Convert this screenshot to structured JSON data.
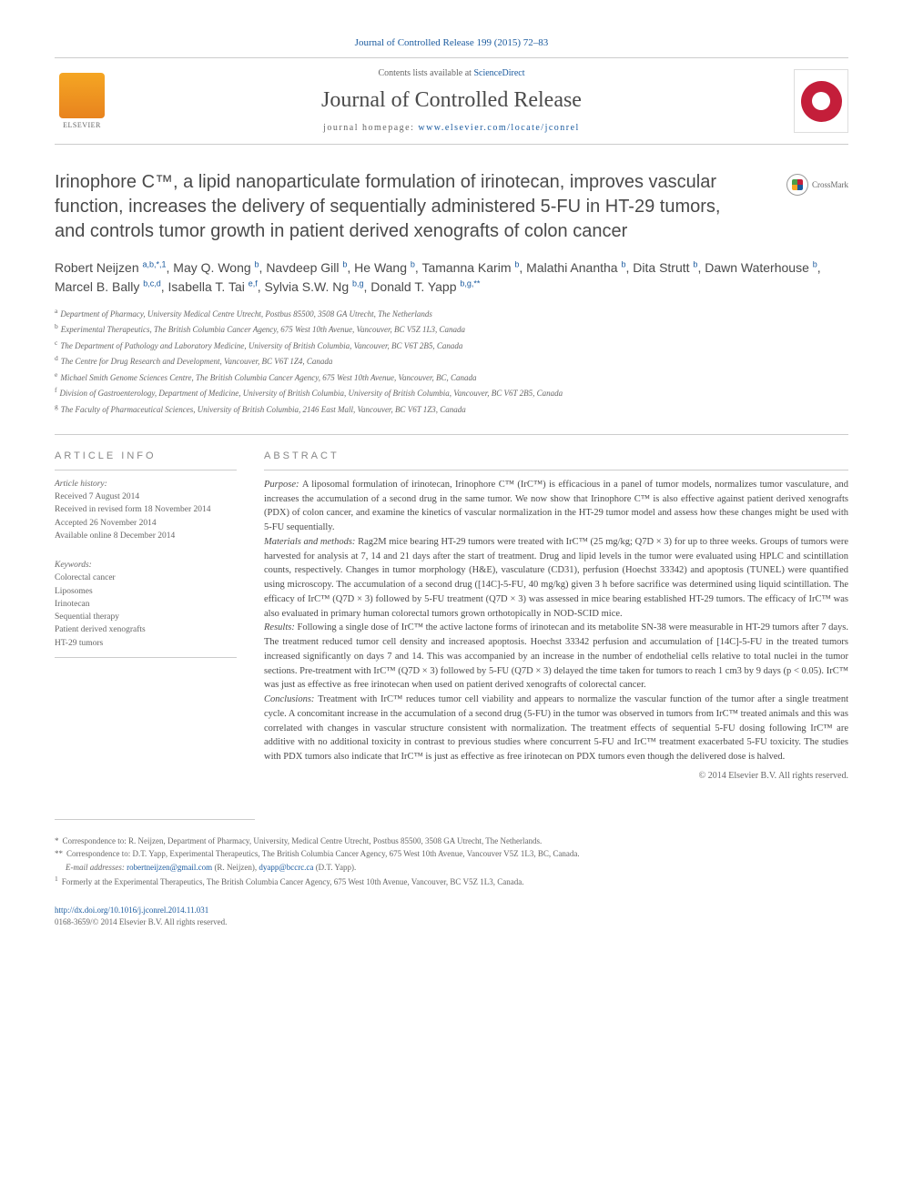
{
  "header": {
    "citation": "Journal of Controlled Release 199 (2015) 72–83",
    "contents_prefix": "Contents lists available at ",
    "contents_link": "ScienceDirect",
    "journal_name": "Journal of Controlled Release",
    "homepage_prefix": "journal homepage: ",
    "homepage_url": "www.elsevier.com/locate/jconrel",
    "publisher": "ELSEVIER"
  },
  "crossmark": "CrossMark",
  "title": "Irinophore C™, a lipid nanoparticulate formulation of irinotecan, improves vascular function, increases the delivery of sequentially administered 5-FU in HT-29 tumors, and controls tumor growth in patient derived xenografts of colon cancer",
  "authors_html": "Robert Neijzen <sup class='aff'>a,b,*,1</sup>, May Q. Wong <sup class='aff'>b</sup>, Navdeep Gill <sup class='aff'>b</sup>, He Wang <sup class='aff'>b</sup>, Tamanna Karim <sup class='aff'>b</sup>, Malathi Anantha <sup class='aff'>b</sup>, Dita Strutt <sup class='aff'>b</sup>, Dawn Waterhouse <sup class='aff'>b</sup>, Marcel B. Bally <sup class='aff'>b,c,d</sup>, Isabella T. Tai <sup class='aff'>e,f</sup>, Sylvia S.W. Ng <sup class='aff'>b,g</sup>, Donald T. Yapp <sup class='aff'>b,g,**</sup>",
  "affiliations": [
    {
      "key": "a",
      "text": "Department of Pharmacy, University Medical Centre Utrecht, Postbus 85500, 3508 GA Utrecht, The Netherlands"
    },
    {
      "key": "b",
      "text": "Experimental Therapeutics, The British Columbia Cancer Agency, 675 West 10th Avenue, Vancouver, BC V5Z 1L3, Canada"
    },
    {
      "key": "c",
      "text": "The Department of Pathology and Laboratory Medicine, University of British Columbia, Vancouver, BC V6T 2B5, Canada"
    },
    {
      "key": "d",
      "text": "The Centre for Drug Research and Development, Vancouver, BC V6T 1Z4, Canada"
    },
    {
      "key": "e",
      "text": "Michael Smith Genome Sciences Centre, The British Columbia Cancer Agency, 675 West 10th Avenue, Vancouver, BC, Canada"
    },
    {
      "key": "f",
      "text": "Division of Gastroenterology, Department of Medicine, University of British Columbia, University of British Columbia, Vancouver, BC V6T 2B5, Canada"
    },
    {
      "key": "g",
      "text": "The Faculty of Pharmaceutical Sciences, University of British Columbia, 2146 East Mall, Vancouver, BC V6T 1Z3, Canada"
    }
  ],
  "article_info": {
    "header": "ARTICLE INFO",
    "history_label": "Article history:",
    "received": "Received 7 August 2014",
    "revised": "Received in revised form 18 November 2014",
    "accepted": "Accepted 26 November 2014",
    "online": "Available online 8 December 2014",
    "keywords_label": "Keywords:",
    "keywords": [
      "Colorectal cancer",
      "Liposomes",
      "Irinotecan",
      "Sequential therapy",
      "Patient derived xenografts",
      "HT-29 tumors"
    ]
  },
  "abstract": {
    "header": "ABSTRACT",
    "purpose_label": "Purpose: ",
    "purpose": "A liposomal formulation of irinotecan, Irinophore C™ (IrC™) is efficacious in a panel of tumor models, normalizes tumor vasculature, and increases the accumulation of a second drug in the same tumor. We now show that Irinophore C™ is also effective against patient derived xenografts (PDX) of colon cancer, and examine the kinetics of vascular normalization in the HT-29 tumor model and assess how these changes might be used with 5-FU sequentially.",
    "methods_label": "Materials and methods: ",
    "methods": "Rag2M mice bearing HT-29 tumors were treated with IrC™ (25 mg/kg; Q7D × 3) for up to three weeks. Groups of tumors were harvested for analysis at 7, 14 and 21 days after the start of treatment. Drug and lipid levels in the tumor were evaluated using HPLC and scintillation counts, respectively. Changes in tumor morphology (H&E), vasculature (CD31), perfusion (Hoechst 33342) and apoptosis (TUNEL) were quantified using microscopy. The accumulation of a second drug ([14C]-5-FU, 40 mg/kg) given 3 h before sacrifice was determined using liquid scintillation. The efficacy of IrC™ (Q7D × 3) followed by 5-FU treatment (Q7D × 3) was assessed in mice bearing established HT-29 tumors. The efficacy of IrC™ was also evaluated in primary human colorectal tumors grown orthotopically in NOD-SCID mice.",
    "results_label": "Results: ",
    "results": "Following a single dose of IrC™ the active lactone forms of irinotecan and its metabolite SN-38 were measurable in HT-29 tumors after 7 days. The treatment reduced tumor cell density and increased apoptosis. Hoechst 33342 perfusion and accumulation of [14C]-5-FU in the treated tumors increased significantly on days 7 and 14. This was accompanied by an increase in the number of endothelial cells relative to total nuclei in the tumor sections. Pre-treatment with IrC™ (Q7D × 3) followed by 5-FU (Q7D × 3) delayed the time taken for tumors to reach 1 cm3 by 9 days (p < 0.05). IrC™ was just as effective as free irinotecan when used on patient derived xenografts of colorectal cancer.",
    "conclusions_label": "Conclusions: ",
    "conclusions": "Treatment with IrC™ reduces tumor cell viability and appears to normalize the vascular function of the tumor after a single treatment cycle. A concomitant increase in the accumulation of a second drug (5-FU) in the tumor was observed in tumors from IrC™ treated animals and this was correlated with changes in vascular structure consistent with normalization. The treatment effects of sequential 5-FU dosing following IrC™ are additive with no additional toxicity in contrast to previous studies where concurrent 5-FU and IrC™ treatment exacerbated 5-FU toxicity. The studies with PDX tumors also indicate that IrC™ is just as effective as free irinotecan on PDX tumors even though the delivered dose is halved.",
    "copyright": "© 2014 Elsevier B.V. All rights reserved."
  },
  "footer": {
    "corr1_marker": "*",
    "corr1": "Correspondence to: R. Neijzen, Department of Pharmacy, University, Medical Centre Utrecht, Postbus 85500, 3508 GA Utrecht, The Netherlands.",
    "corr2_marker": "**",
    "corr2": "Correspondence to: D.T. Yapp, Experimental Therapeutics, The British Columbia Cancer Agency, 675 West 10th Avenue, Vancouver V5Z 1L3, BC, Canada.",
    "email_label": "E-mail addresses: ",
    "email1": "robertneijzen@gmail.com",
    "email1_name": " (R. Neijzen), ",
    "email2": "dyapp@bccrc.ca",
    "email2_name": " (D.T. Yapp).",
    "note1_marker": "1",
    "note1": "Formerly at the Experimental Therapeutics, The British Columbia Cancer Agency, 675 West 10th Avenue, Vancouver, BC V5Z 1L3, Canada.",
    "doi": "http://dx.doi.org/10.1016/j.jconrel.2014.11.031",
    "issn": "0168-3659/© 2014 Elsevier B.V. All rights reserved."
  },
  "colors": {
    "link": "#1a5a9e",
    "text": "#4a4a4a",
    "muted": "#666666",
    "border": "#cccccc",
    "elsevier_orange": "#e8831e",
    "cover_red": "#c41e3a"
  }
}
